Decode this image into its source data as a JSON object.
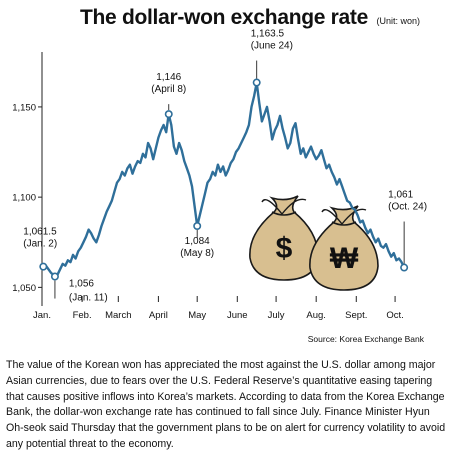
{
  "chart_data": {
    "type": "line",
    "title": "The dollar-won exchange rate",
    "unit_label": "(Unit: won)",
    "source": "Source: Korea Exchange Bank",
    "y_ticks": [
      {
        "value": 1050,
        "label": "1,050"
      },
      {
        "value": 1100,
        "label": "1,100"
      },
      {
        "value": 1150,
        "label": "1,150"
      }
    ],
    "ylim": [
      1043,
      1176
    ],
    "x_ticks": [
      {
        "x": 0,
        "label": "Jan."
      },
      {
        "x": 31,
        "label": "Feb."
      },
      {
        "x": 59,
        "label": "March"
      },
      {
        "x": 90,
        "label": "April"
      },
      {
        "x": 120,
        "label": "May"
      },
      {
        "x": 151,
        "label": "June"
      },
      {
        "x": 181,
        "label": "July"
      },
      {
        "x": 212,
        "label": "Aug."
      },
      {
        "x": 243,
        "label": "Sept."
      },
      {
        "x": 273,
        "label": "Oct."
      }
    ],
    "xlim": [
      0,
      300
    ],
    "series": [
      {
        "color": "#2f6f9a",
        "points": [
          [
            1,
            1061.5
          ],
          [
            3,
            1062
          ],
          [
            5,
            1060
          ],
          [
            7,
            1058
          ],
          [
            10,
            1056
          ],
          [
            12,
            1057
          ],
          [
            14,
            1060
          ],
          [
            16,
            1063
          ],
          [
            18,
            1062
          ],
          [
            20,
            1065
          ],
          [
            22,
            1064
          ],
          [
            24,
            1068
          ],
          [
            26,
            1066
          ],
          [
            28,
            1070
          ],
          [
            30,
            1072
          ],
          [
            32,
            1075
          ],
          [
            34,
            1078
          ],
          [
            36,
            1082
          ],
          [
            38,
            1080
          ],
          [
            40,
            1077
          ],
          [
            42,
            1075
          ],
          [
            44,
            1079
          ],
          [
            46,
            1084
          ],
          [
            48,
            1088
          ],
          [
            50,
            1092
          ],
          [
            52,
            1095
          ],
          [
            54,
            1098
          ],
          [
            56,
            1103
          ],
          [
            58,
            1108
          ],
          [
            60,
            1110
          ],
          [
            62,
            1114
          ],
          [
            64,
            1112
          ],
          [
            66,
            1116
          ],
          [
            68,
            1118
          ],
          [
            70,
            1113
          ],
          [
            72,
            1117
          ],
          [
            74,
            1120
          ],
          [
            76,
            1119
          ],
          [
            78,
            1124
          ],
          [
            80,
            1122
          ],
          [
            82,
            1130
          ],
          [
            84,
            1127
          ],
          [
            86,
            1121
          ],
          [
            88,
            1127
          ],
          [
            90,
            1133
          ],
          [
            92,
            1137
          ],
          [
            94,
            1140
          ],
          [
            96,
            1136
          ],
          [
            98,
            1146
          ],
          [
            100,
            1140
          ],
          [
            102,
            1128
          ],
          [
            104,
            1124
          ],
          [
            106,
            1130
          ],
          [
            108,
            1126
          ],
          [
            110,
            1120
          ],
          [
            112,
            1116
          ],
          [
            114,
            1112
          ],
          [
            116,
            1106
          ],
          [
            118,
            1095
          ],
          [
            120,
            1084
          ],
          [
            122,
            1090
          ],
          [
            124,
            1096
          ],
          [
            126,
            1102
          ],
          [
            128,
            1108
          ],
          [
            130,
            1110
          ],
          [
            132,
            1114
          ],
          [
            134,
            1112
          ],
          [
            136,
            1118
          ],
          [
            138,
            1114
          ],
          [
            140,
            1117
          ],
          [
            142,
            1112
          ],
          [
            144,
            1115
          ],
          [
            146,
            1119
          ],
          [
            148,
            1121
          ],
          [
            150,
            1125
          ],
          [
            152,
            1127
          ],
          [
            154,
            1130
          ],
          [
            156,
            1133
          ],
          [
            158,
            1136
          ],
          [
            160,
            1140
          ],
          [
            162,
            1150
          ],
          [
            164,
            1156
          ],
          [
            166,
            1163.5
          ],
          [
            168,
            1152
          ],
          [
            170,
            1142
          ],
          [
            172,
            1146
          ],
          [
            174,
            1150
          ],
          [
            176,
            1142
          ],
          [
            178,
            1132
          ],
          [
            180,
            1137
          ],
          [
            182,
            1140
          ],
          [
            184,
            1145
          ],
          [
            186,
            1138
          ],
          [
            188,
            1133
          ],
          [
            190,
            1127
          ],
          [
            192,
            1130
          ],
          [
            194,
            1138
          ],
          [
            196,
            1141
          ],
          [
            198,
            1132
          ],
          [
            200,
            1124
          ],
          [
            202,
            1127
          ],
          [
            204,
            1122
          ],
          [
            206,
            1125
          ],
          [
            208,
            1128
          ],
          [
            210,
            1124
          ],
          [
            212,
            1121
          ],
          [
            214,
            1123
          ],
          [
            216,
            1126
          ],
          [
            218,
            1121
          ],
          [
            220,
            1116
          ],
          [
            222,
            1118
          ],
          [
            224,
            1114
          ],
          [
            226,
            1111
          ],
          [
            228,
            1107
          ],
          [
            230,
            1110
          ],
          [
            232,
            1106
          ],
          [
            234,
            1102
          ],
          [
            236,
            1098
          ],
          [
            238,
            1097
          ],
          [
            240,
            1094
          ],
          [
            242,
            1093
          ],
          [
            244,
            1090
          ],
          [
            246,
            1086
          ],
          [
            248,
            1087
          ],
          [
            250,
            1083
          ],
          [
            252,
            1080
          ],
          [
            254,
            1082
          ],
          [
            256,
            1078
          ],
          [
            258,
            1075
          ],
          [
            260,
            1077
          ],
          [
            262,
            1073
          ],
          [
            264,
            1072
          ],
          [
            266,
            1074
          ],
          [
            268,
            1070
          ],
          [
            270,
            1067
          ],
          [
            272,
            1069
          ],
          [
            274,
            1065
          ],
          [
            276,
            1066
          ],
          [
            278,
            1064
          ],
          [
            280,
            1061
          ]
        ]
      }
    ],
    "annotations": [
      {
        "value": "1,061.5",
        "date": "(Jan. 2)",
        "x": 1,
        "y": 1061.5
      },
      {
        "value": "1,056",
        "date": "(Jan. 11)",
        "x": 10,
        "y": 1056
      },
      {
        "value": "1,146",
        "date": "(April 8)",
        "x": 98,
        "y": 1146
      },
      {
        "value": "1,084",
        "date": "(May 8)",
        "x": 120,
        "y": 1084
      },
      {
        "value": "1,163.5",
        "date": "(June 24)",
        "x": 166,
        "y": 1163.5
      },
      {
        "value": "1,061",
        "date": "(Oct. 24)",
        "x": 280,
        "y": 1061
      }
    ],
    "icons": [
      "dollar-money-bag-icon",
      "won-money-bag-icon"
    ],
    "icon_symbols": {
      "dollar": "$",
      "won": "₩"
    },
    "colors": {
      "line": "#2f6f9a",
      "marker_fill": "#ffffff",
      "bag": "#d8bf90",
      "bag_outline": "#1a1a1a"
    }
  },
  "caption": "The value of the Korean won has appreciated the most against the U.S. dollar among major Asian currencies, due to fears over the U.S. Federal Reserve’s quantitative easing tapering that causes positive inflows into Korea’s markets. According to data from the Korea Exchange Bank, the dollar-won exchange rate has continued to fall since July. Finance Minister Hyun Oh-seok said Thursday that the government plans to be on alert for currency volatility to avoid any potential threat to the economy."
}
